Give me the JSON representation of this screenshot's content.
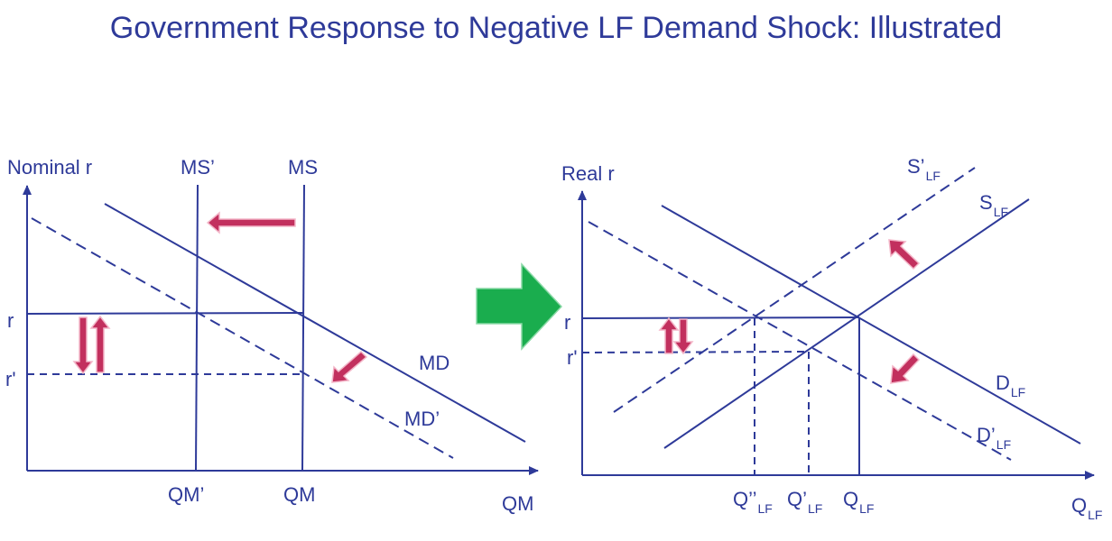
{
  "title": "Government Response to Negative LF Demand Shock: Illustrated",
  "colors": {
    "line": "#2e3a99",
    "arrow_fill": "#c2305e",
    "arrow_stroke": "#f3b6c8",
    "big_arrow": "#1aad4e",
    "title": "#2e3a99"
  },
  "money_market": {
    "y_axis_label": "Nominal r",
    "x_axis_label": "QM",
    "supply_new_label": "MS’",
    "supply_label": "MS",
    "demand_label": "MD",
    "demand_new_label": "MD’",
    "rate_label": "r",
    "rate_new_label": "r'",
    "qty_new_label": "QM’",
    "qty_label": "QM"
  },
  "loanable_funds": {
    "y_axis_label": "Real r",
    "x_axis_main": "Q",
    "lf_subscript": "LF",
    "supply_new_main": "S’",
    "supply_main": "S",
    "demand_main": "D",
    "demand_new_main": "D’",
    "rate_label": "r",
    "rate_new_label": "r'",
    "qty_double_prime_main": "Q’’",
    "qty_prime_main": "Q’",
    "qty_main": "Q"
  },
  "transition": {
    "icon": "right-arrow-icon"
  }
}
